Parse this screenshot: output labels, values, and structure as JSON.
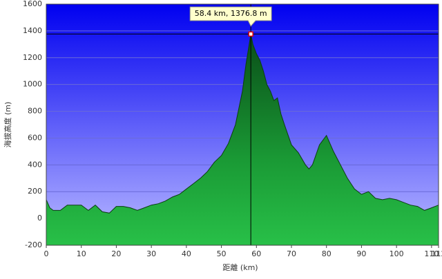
{
  "chart_data": {
    "type": "area",
    "ylabel": "海拔高度 (m)",
    "xlabel": "距離 (km)",
    "x": [
      0,
      1,
      2,
      4,
      6,
      8,
      10,
      12,
      14,
      16,
      18,
      20,
      22,
      24,
      26,
      28,
      30,
      32,
      34,
      36,
      38,
      40,
      42,
      44,
      46,
      48,
      50,
      52,
      54,
      56,
      57,
      58.4,
      59,
      60,
      61,
      62,
      63,
      64,
      65,
      66,
      67,
      68,
      70,
      72,
      74,
      75,
      76,
      78,
      80,
      82,
      84,
      86,
      88,
      90,
      92,
      94,
      96,
      98,
      100,
      102,
      104,
      106,
      108,
      110,
      112
    ],
    "values": [
      140,
      80,
      60,
      60,
      100,
      100,
      100,
      60,
      100,
      50,
      40,
      90,
      90,
      80,
      60,
      80,
      100,
      110,
      130,
      160,
      180,
      220,
      260,
      300,
      350,
      420,
      470,
      560,
      700,
      950,
      1150,
      1376.8,
      1300,
      1230,
      1180,
      1100,
      1000,
      950,
      880,
      900,
      780,
      700,
      550,
      490,
      400,
      370,
      400,
      550,
      620,
      500,
      400,
      300,
      220,
      180,
      200,
      150,
      140,
      150,
      140,
      120,
      100,
      90,
      60,
      80,
      100
    ],
    "color": "#1e9a3a",
    "xlim": [
      0,
      112
    ],
    "xticks": [
      0,
      10,
      20,
      30,
      40,
      50,
      60,
      70,
      80,
      90,
      100,
      110,
      112
    ],
    "ylim": [
      -200,
      1600
    ],
    "yticks": [
      -200,
      0,
      200,
      400,
      600,
      800,
      1000,
      1200,
      1400,
      1600
    ],
    "grid": true,
    "highlight": {
      "x": 58.4,
      "y": 1376.8,
      "label": "58.4 km, 1376.8 m"
    }
  }
}
